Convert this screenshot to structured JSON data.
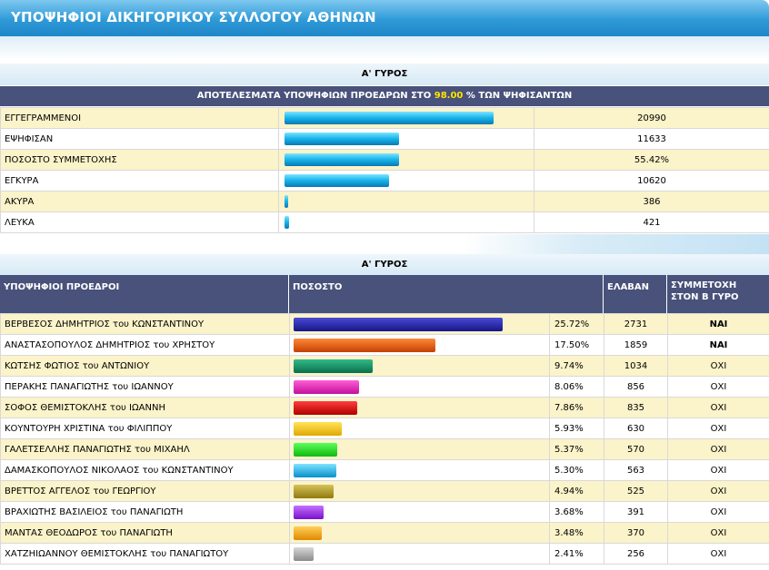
{
  "header": {
    "title": "ΥΠΟΨΗΦΙΟΙ ΔΙΚΗΓΟΡΙΚΟΥ ΣΥΛΛΟΓΟΥ ΑΘΗΝΩΝ"
  },
  "stats_section": {
    "round_title": "Α' ΓΥΡΟΣ",
    "results_prefix": "ΑΠΟΤΕΛΕΣΜΑΤΑ ΥΠΟΨΗΦΙΩΝ ΠΡΟΕΔΡΩΝ ΣΤΟ",
    "results_percent": "98.00",
    "results_suffix": "% ΤΩΝ ΨΗΦΙΣΑΝΤΩΝ",
    "rows": [
      {
        "label": "ΕΓΓΕΓΡΑΜΜΕΝΟΙ",
        "value": "20990",
        "bar_fraction": 0.82
      },
      {
        "label": "ΕΨΗΦΙΣΑΝ",
        "value": "11633",
        "bar_fraction": 0.45
      },
      {
        "label": "ΠΟΣΟΣΤΟ ΣΥΜΜΕΤΟΧΗΣ",
        "value": "55.42%",
        "bar_fraction": 0.45
      },
      {
        "label": "ΕΓΚΥΡΑ",
        "value": "10620",
        "bar_fraction": 0.41
      },
      {
        "label": "ΑΚΥΡΑ",
        "value": "386",
        "bar_fraction": 0.015
      },
      {
        "label": "ΛΕΥΚΑ",
        "value": "421",
        "bar_fraction": 0.017
      }
    ]
  },
  "candidates_section": {
    "round_title": "Α' ΓΥΡΟΣ",
    "columns": {
      "candidate": "ΥΠΟΨΗΦΙΟΙ ΠΡΟΕΔΡΟΙ",
      "percent": "ΠΟΣΟΣΤΟ",
      "received": "ΕΛΑΒΑΝ",
      "participation_line1": "ΣΥΜΜΕΤΟΧΗ",
      "participation_line2": "ΣΤΟΝ Β ΓΥΡΟ"
    },
    "rows": [
      {
        "surname_first": "ΒΕΡΒΕΣΟΣ ΔΗΜΗΤΡΙΟΣ",
        "tou": "του",
        "father": "ΚΩΝΣΤΑΝΤΙΝΟΥ",
        "percent": "25.72%",
        "bar_percent": 25.72,
        "votes": "2731",
        "second_round": "ΝΑΙ",
        "color_top": "#4a4ad6",
        "color_bottom": "#161687"
      },
      {
        "surname_first": "ΑΝΑΣΤΑΣΟΠΟΥΛΟΣ ΔΗΜΗΤΡΙΟΣ",
        "tou": "του",
        "father": "ΧΡΗΣΤΟΥ",
        "percent": "17.50%",
        "bar_percent": 17.5,
        "votes": "1859",
        "second_round": "ΝΑΙ",
        "color_top": "#ff8a3a",
        "color_bottom": "#c43f00"
      },
      {
        "surname_first": "ΚΩΤΣΗΣ ΦΩΤΙΟΣ",
        "tou": "του",
        "father": "ΑΝΤΩΝΙΟΥ",
        "percent": "9.74%",
        "bar_percent": 9.74,
        "votes": "1034",
        "second_round": "ΟΧΙ",
        "color_top": "#33b98a",
        "color_bottom": "#08704c"
      },
      {
        "surname_first": "ΠΕΡΑΚΗΣ ΠΑΝΑΓΙΩΤΗΣ",
        "tou": "του",
        "father": "ΙΩΑΝΝΟΥ",
        "percent": "8.06%",
        "bar_percent": 8.06,
        "votes": "856",
        "second_round": "ΟΧΙ",
        "color_top": "#ff5fd6",
        "color_bottom": "#c1109b"
      },
      {
        "surname_first": "ΣΟΦΟΣ ΘΕΜΙΣΤΟΚΛΗΣ",
        "tou": "του",
        "father": "ΙΩΑΝΝΗ",
        "percent": "7.86%",
        "bar_percent": 7.86,
        "votes": "835",
        "second_round": "ΟΧΙ",
        "color_top": "#ff3d3d",
        "color_bottom": "#b00000"
      },
      {
        "surname_first": "ΚΟΥΝΤΟΥΡΗ ΧΡΙΣΤΙΝΑ",
        "tou": "του",
        "father": "ΦΙΛΙΠΠΟΥ",
        "percent": "5.93%",
        "bar_percent": 5.93,
        "votes": "630",
        "second_round": "ΟΧΙ",
        "color_top": "#ffe45a",
        "color_bottom": "#e0a800"
      },
      {
        "surname_first": "ΓΑΛΕΤΣΕΛΛΗΣ ΠΑΝΑΓΙΩΤΗΣ",
        "tou": "του",
        "father": "ΜΙΧΑΗΛ",
        "percent": "5.37%",
        "bar_percent": 5.37,
        "votes": "570",
        "second_round": "ΟΧΙ",
        "color_top": "#5cff5c",
        "color_bottom": "#10b810"
      },
      {
        "surname_first": "ΔΑΜΑΣΚΟΠΟΥΛΟΣ ΝΙΚΟΛΑΟΣ",
        "tou": "του",
        "father": "ΚΩΝΣΤΑΝΤΙΝΟΥ",
        "percent": "5.30%",
        "bar_percent": 5.3,
        "votes": "563",
        "second_round": "ΟΧΙ",
        "color_top": "#7fe3ff",
        "color_bottom": "#0790cc"
      },
      {
        "surname_first": "ΒΡΕΤΤΟΣ ΑΓΓΕΛΟΣ",
        "tou": "του",
        "father": "ΓΕΩΡΓΙΟΥ",
        "percent": "4.94%",
        "bar_percent": 4.94,
        "votes": "525",
        "second_round": "ΟΧΙ",
        "color_top": "#d8c35a",
        "color_bottom": "#8f7a10"
      },
      {
        "surname_first": "ΒΡΑΧΙΩΤΗΣ ΒΑΣΙΛΕΙΟΣ",
        "tou": "του",
        "father": "ΠΑΝΑΓΙΩΤΗ",
        "percent": "3.68%",
        "bar_percent": 3.68,
        "votes": "391",
        "second_round": "ΟΧΙ",
        "color_top": "#c470ff",
        "color_bottom": "#7a10c8"
      },
      {
        "surname_first": "ΜΑΝΤΑΣ ΘΕΟΔΩΡΟΣ",
        "tou": "του",
        "father": "ΠΑΝΑΓΙΩΤΗ",
        "percent": "3.48%",
        "bar_percent": 3.48,
        "votes": "370",
        "second_round": "ΟΧΙ",
        "color_top": "#ffcf5a",
        "color_bottom": "#e08a00"
      },
      {
        "surname_first": "ΧΑΤΖΗΙΩΑΝΝΟΥ ΘΕΜΙΣΤΟΚΛΗΣ",
        "tou": "του",
        "father": "ΠΑΝΑΓΙΩΤΟΥ",
        "percent": "2.41%",
        "bar_percent": 2.41,
        "votes": "256",
        "second_round": "ΟΧΙ",
        "color_top": "#d8d8d8",
        "color_bottom": "#8a8a8a"
      }
    ]
  }
}
